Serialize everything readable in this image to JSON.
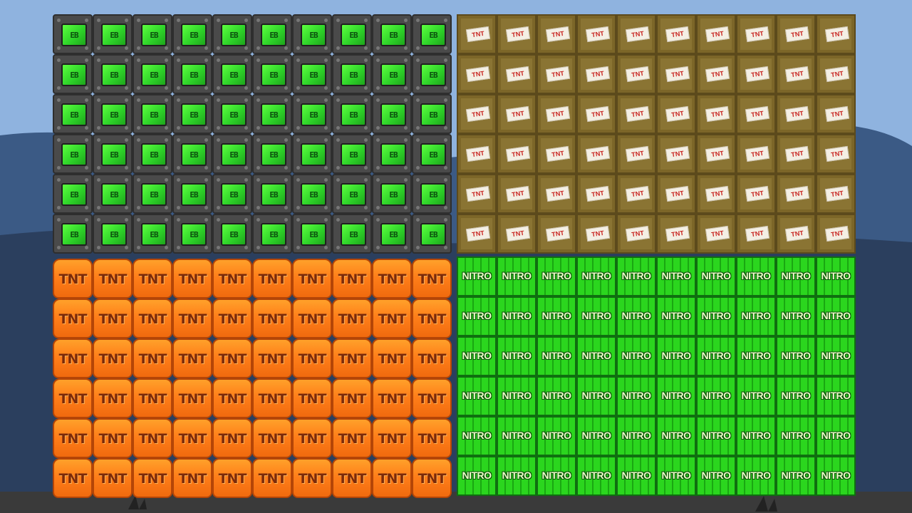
{
  "scene": {
    "sky_color": "#8fb3df",
    "hill_color": "#3b5a85",
    "ground_color": "#3a3a3a"
  },
  "blocks": {
    "top_left": {
      "type": "electric-box",
      "label": "EB",
      "rows": 6,
      "cols": 10,
      "color": "#3ddc2f"
    },
    "top_right": {
      "type": "tnt-crate",
      "label": "TNT",
      "rows": 6,
      "cols": 10,
      "color": "#8a7433"
    },
    "bottom_left": {
      "type": "tnt-barrel",
      "label": "TNT",
      "rows": 6,
      "cols": 10,
      "color": "#ff8a1f"
    },
    "bottom_right": {
      "type": "nitro-box",
      "label": "NITRO",
      "rows": 6,
      "cols": 10,
      "color": "#27c51b"
    }
  }
}
